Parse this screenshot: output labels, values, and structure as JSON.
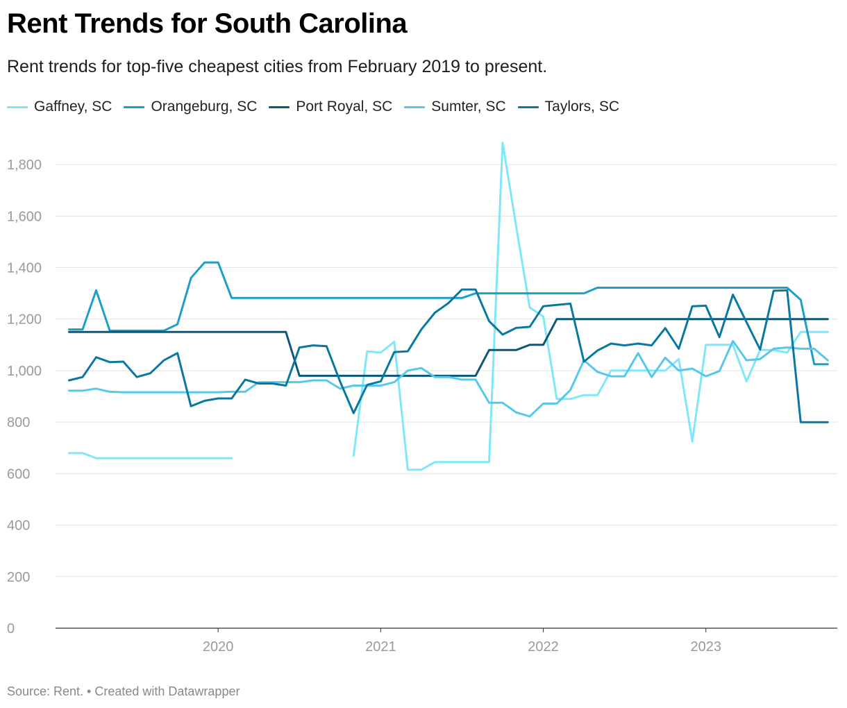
{
  "header": {
    "title": "Rent Trends for South Carolina",
    "subtitle": "Rent trends for top-five cheapest cities from February 2019 to present."
  },
  "footer": {
    "source": "Source: Rent. • Created with Datawrapper"
  },
  "chart_data": {
    "type": "line",
    "title": "Rent Trends for South Carolina",
    "subtitle": "Rent trends for top-five cheapest cities from February 2019 to present.",
    "xlabel": "",
    "ylabel": "",
    "ylim": [
      0,
      1900
    ],
    "yticks": [
      0,
      200,
      400,
      600,
      800,
      1000,
      1200,
      1400,
      1600,
      1800
    ],
    "ytick_labels": [
      "0",
      "200",
      "400",
      "600",
      "800",
      "1,000",
      "1,200",
      "1,400",
      "1,600",
      "1,800"
    ],
    "xticks": [
      "2020-01",
      "2021-01",
      "2022-01",
      "2023-01"
    ],
    "xtick_labels": [
      "2020",
      "2021",
      "2022",
      "2023"
    ],
    "x_start": "2019-02",
    "x_end": "2023-10",
    "grid": true,
    "legend_position": "top-left",
    "x": [
      "2019-02",
      "2019-03",
      "2019-04",
      "2019-05",
      "2019-06",
      "2019-07",
      "2019-08",
      "2019-09",
      "2019-10",
      "2019-11",
      "2019-12",
      "2020-01",
      "2020-02",
      "2020-03",
      "2020-04",
      "2020-05",
      "2020-06",
      "2020-07",
      "2020-08",
      "2020-09",
      "2020-10",
      "2020-11",
      "2020-12",
      "2021-01",
      "2021-02",
      "2021-03",
      "2021-04",
      "2021-05",
      "2021-06",
      "2021-07",
      "2021-08",
      "2021-09",
      "2021-10",
      "2021-11",
      "2021-12",
      "2022-01",
      "2022-02",
      "2022-03",
      "2022-04",
      "2022-05",
      "2022-06",
      "2022-07",
      "2022-08",
      "2022-09",
      "2022-10",
      "2022-11",
      "2022-12",
      "2023-01",
      "2023-02",
      "2023-03",
      "2023-04",
      "2023-05",
      "2023-06",
      "2023-07",
      "2023-08",
      "2023-09",
      "2023-10"
    ],
    "series": [
      {
        "name": "Gaffney, SC",
        "color": "#7ee8f8",
        "values": [
          680,
          680,
          660,
          660,
          660,
          660,
          660,
          660,
          660,
          660,
          660,
          660,
          660,
          null,
          null,
          null,
          null,
          null,
          null,
          null,
          null,
          670,
          1075,
          1070,
          1112,
          615,
          615,
          645,
          645,
          645,
          645,
          645,
          1885,
          1560,
          1245,
          1210,
          890,
          890,
          905,
          905,
          1000,
          1000,
          1000,
          1000,
          1000,
          1045,
          725,
          1100,
          1100,
          1100,
          958,
          1080,
          1080,
          1070,
          1150,
          1150,
          1150
        ]
      },
      {
        "name": "Orangeburg, SC",
        "color": "#1aa0c8",
        "values": [
          1160,
          1160,
          1312,
          1155,
          1155,
          1155,
          1155,
          1155,
          1180,
          1360,
          1420,
          1420,
          1282,
          1282,
          1282,
          1282,
          1282,
          1282,
          1282,
          1282,
          1282,
          1282,
          1282,
          1282,
          1282,
          1282,
          1282,
          1282,
          1282,
          1282,
          1300,
          1300,
          1300,
          1300,
          1300,
          1300,
          1300,
          1300,
          1300,
          1322,
          1322,
          1322,
          1322,
          1322,
          1322,
          1322,
          1322,
          1322,
          1322,
          1322,
          1322,
          1322,
          1322,
          1322,
          1275,
          1025,
          1025
        ]
      },
      {
        "name": "Port Royal, SC",
        "color": "#0a5878",
        "values": [
          1150,
          1150,
          1150,
          1150,
          1150,
          1150,
          1150,
          1150,
          1150,
          1150,
          1150,
          1150,
          1150,
          1150,
          1150,
          1150,
          1150,
          980,
          980,
          980,
          980,
          980,
          980,
          980,
          980,
          980,
          980,
          980,
          980,
          980,
          980,
          1080,
          1080,
          1080,
          1100,
          1100,
          1200,
          1200,
          1200,
          1200,
          1200,
          1200,
          1200,
          1200,
          1200,
          1200,
          1200,
          1200,
          1200,
          1200,
          1200,
          1200,
          1200,
          1200,
          1200,
          1200,
          1200
        ]
      },
      {
        "name": "Sumter, SC",
        "color": "#56c8ea",
        "values": [
          922,
          922,
          930,
          918,
          916,
          916,
          916,
          916,
          916,
          916,
          916,
          916,
          918,
          918,
          955,
          955,
          955,
          955,
          962,
          962,
          930,
          942,
          942,
          942,
          955,
          1000,
          1010,
          975,
          975,
          965,
          965,
          875,
          875,
          838,
          822,
          872,
          872,
          925,
          1040,
          995,
          978,
          978,
          1068,
          975,
          1050,
          1000,
          1008,
          978,
          998,
          1115,
          1040,
          1045,
          1085,
          1090,
          1085,
          1085,
          1040
        ]
      },
      {
        "name": "Taylors, SC",
        "color": "#0878a0",
        "values": [
          962,
          975,
          1052,
          1033,
          1035,
          975,
          990,
          1040,
          1068,
          862,
          883,
          892,
          892,
          965,
          950,
          950,
          942,
          1090,
          1098,
          1095,
          958,
          835,
          945,
          958,
          1072,
          1075,
          1160,
          1225,
          1262,
          1315,
          1315,
          1192,
          1140,
          1166,
          1170,
          1250,
          1255,
          1260,
          1035,
          1078,
          1105,
          1098,
          1105,
          1098,
          1165,
          1085,
          1250,
          1252,
          1130,
          1295,
          1188,
          1082,
          1310,
          1312,
          800,
          800,
          800
        ]
      }
    ]
  }
}
